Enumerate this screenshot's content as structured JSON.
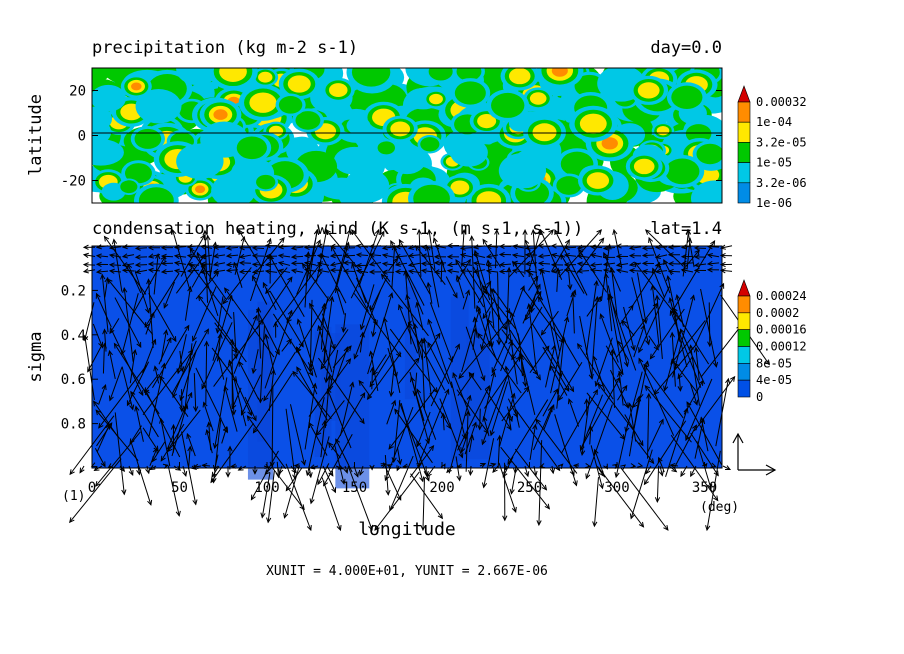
{
  "chart_data": [
    {
      "type": "heatmap",
      "title": "precipitation (kg m-2 s-1)",
      "title_right": "day=0.0",
      "ylabel": "latitude",
      "y_ticks": [
        "20",
        "0",
        "-20"
      ],
      "y_tick_values": [
        20,
        0,
        -20
      ],
      "ylim": [
        -30,
        30
      ],
      "xlim": [
        0,
        360
      ],
      "colorbar": {
        "labels": [
          "0.00032",
          "1e-04",
          "3.2e-05",
          "1e-05",
          "3.2e-06",
          "1e-06"
        ],
        "colors": [
          "#d40000",
          "#ff8c00",
          "#ffe800",
          "#00c800",
          "#00c8e6",
          "#008ce6"
        ]
      }
    },
    {
      "type": "heatmap",
      "title": "condensation heating, wind (K s-1, (m s-1, s-1))",
      "title_right": "lat=1.4",
      "xlabel": "longitude",
      "ylabel": "sigma",
      "x_ticks": [
        "0",
        "50",
        "100",
        "150",
        "200",
        "250",
        "300",
        "350"
      ],
      "x_tick_values": [
        0,
        50,
        100,
        150,
        200,
        250,
        300,
        350
      ],
      "x_unit": "(deg)",
      "x_index_label": "(1)",
      "y_ticks": [
        "0.2",
        "0.4",
        "0.6",
        "0.8"
      ],
      "y_tick_values": [
        0.2,
        0.4,
        0.6,
        0.8
      ],
      "ylim": [
        1.0,
        0.0
      ],
      "xlim": [
        0,
        360
      ],
      "colorbar": {
        "labels": [
          "0.00024",
          "0.0002",
          "0.00016",
          "0.00012",
          "8e-05",
          "4e-05",
          "0"
        ],
        "colors": [
          "#d40000",
          "#ff8c00",
          "#ffe800",
          "#00c800",
          "#00c8e6",
          "#008ce6",
          "#0050e6"
        ]
      },
      "footer": "XUNIT = 4.000E+01, YUNIT = 2.667E-06"
    }
  ]
}
